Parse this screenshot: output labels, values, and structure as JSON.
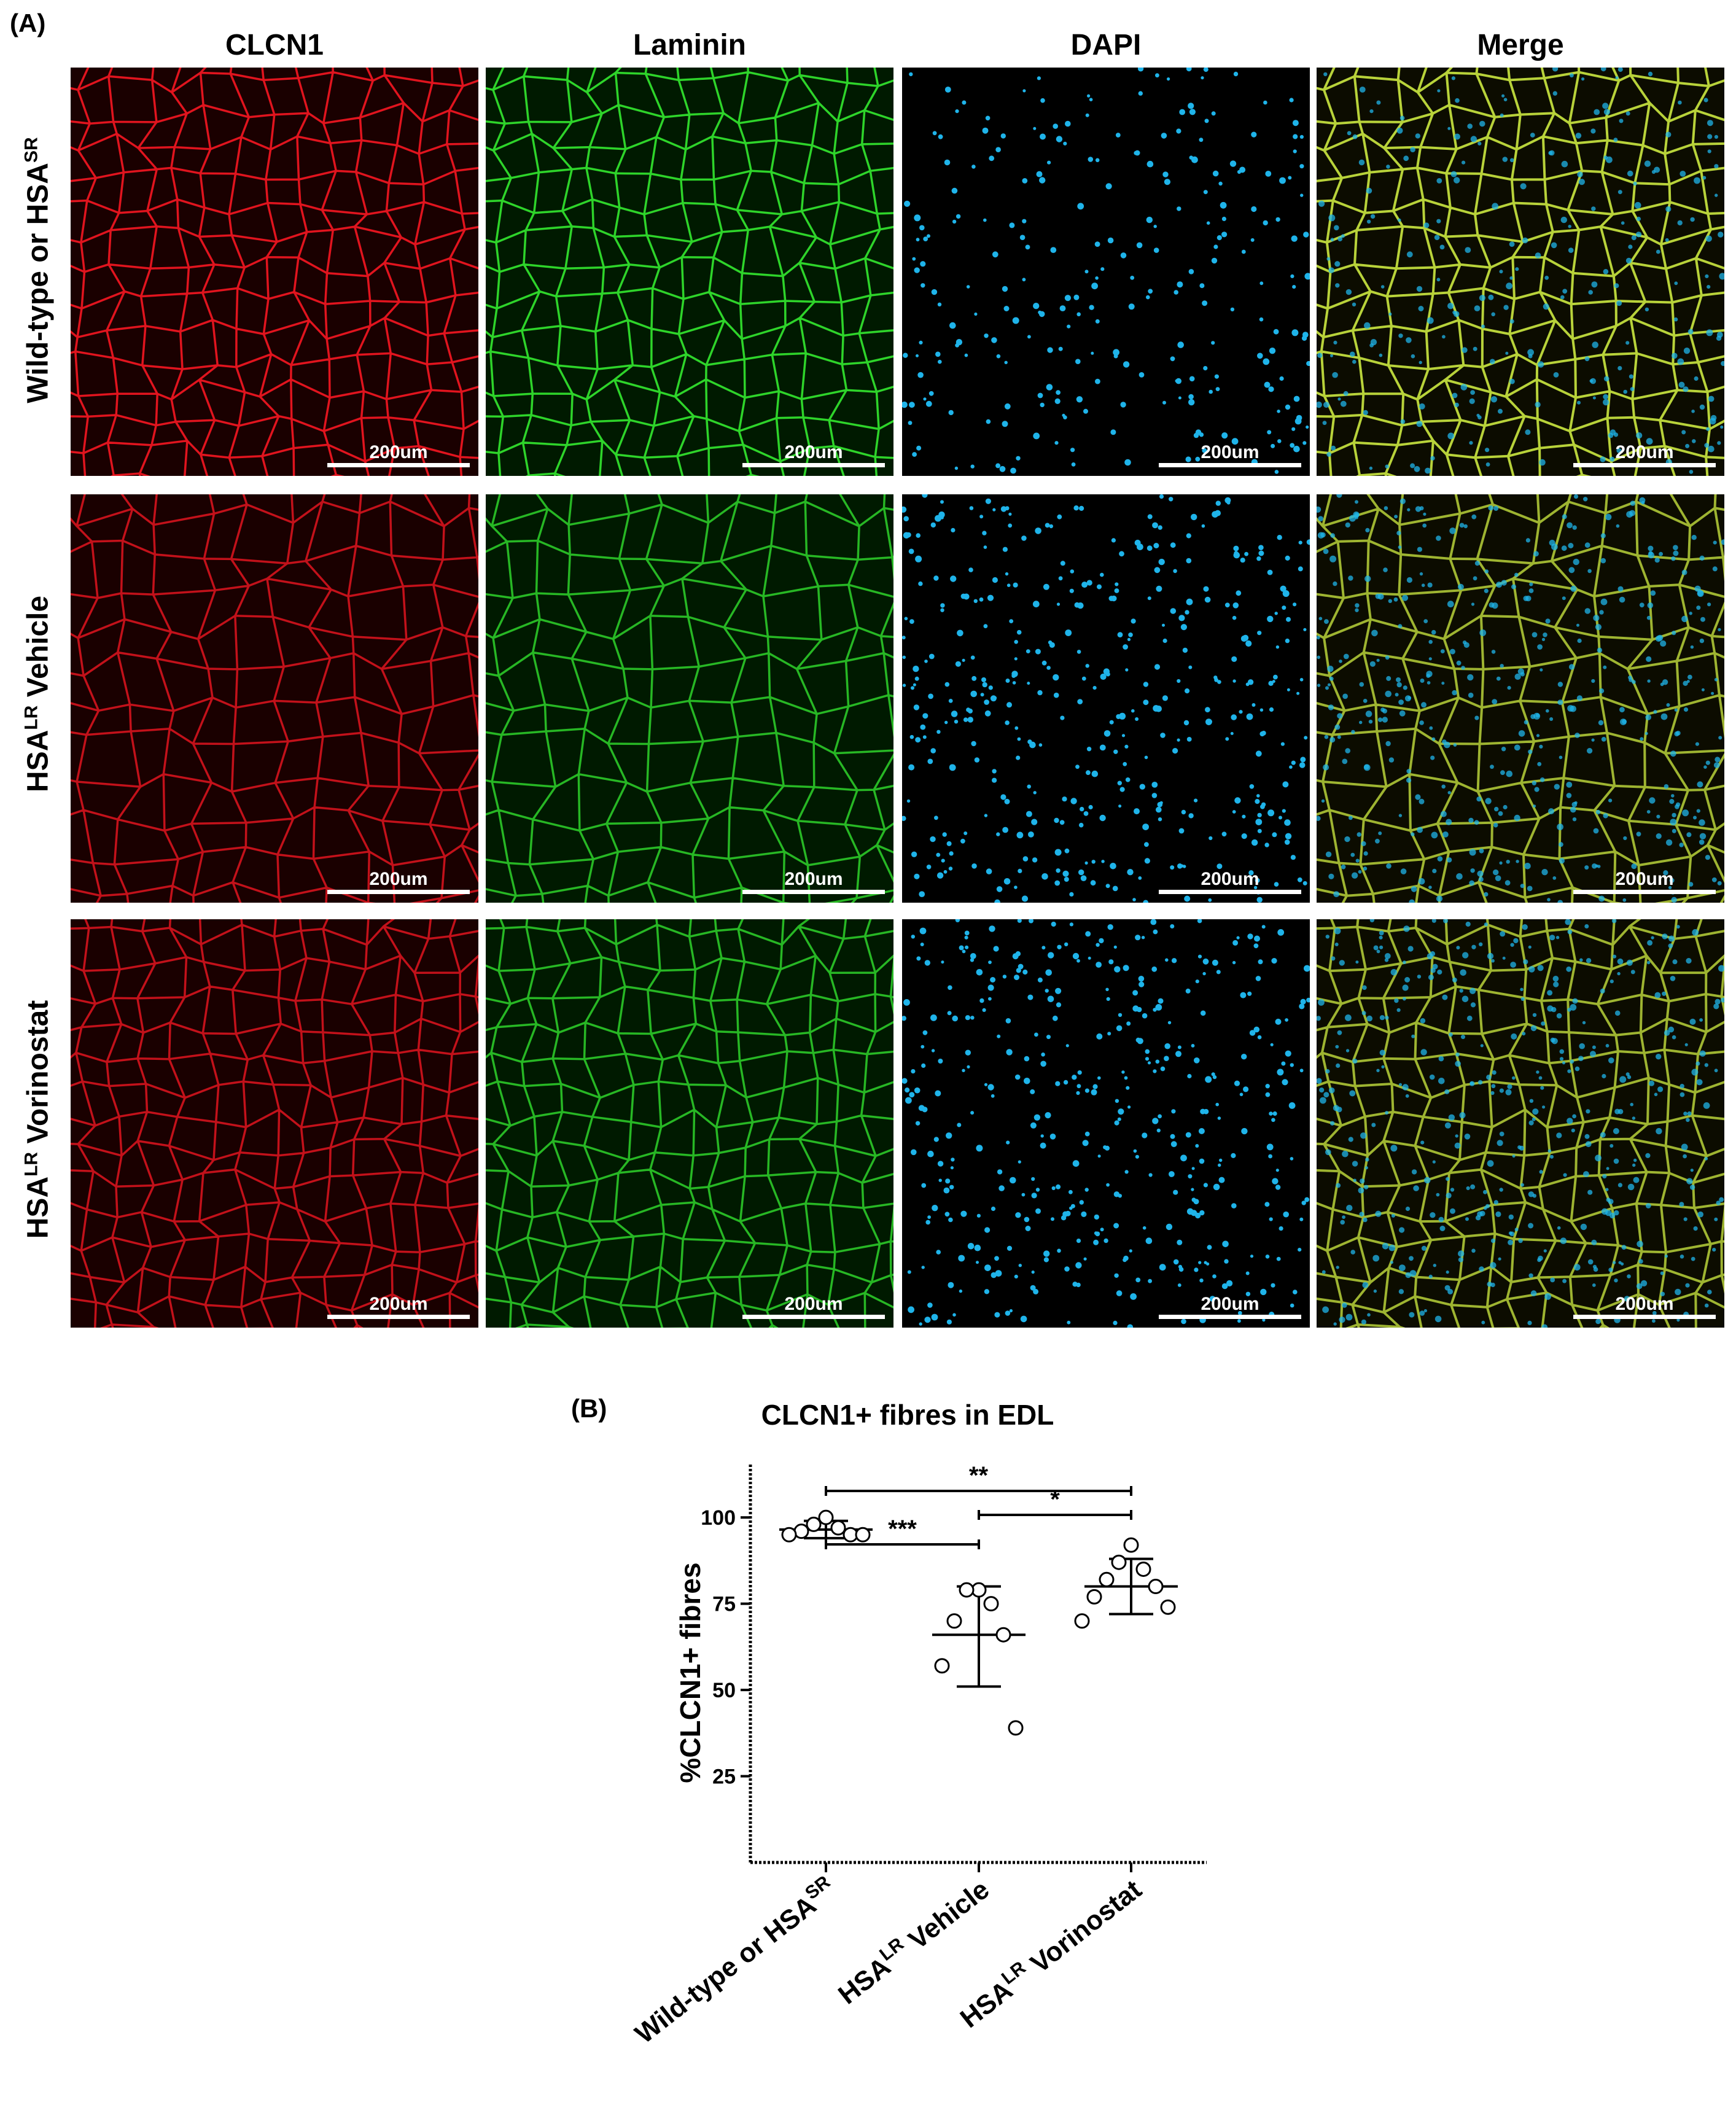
{
  "figure": {
    "panel_a_label": "(A)",
    "panel_b_label": "(B)",
    "columns": [
      "CLCN1",
      "Laminin",
      "DAPI",
      "Merge"
    ],
    "rows": [
      {
        "base": "Wild-type or HSA",
        "sup": "SR",
        "suffix": ""
      },
      {
        "base": "HSA",
        "sup": "LR",
        "suffix": " Vehicle"
      },
      {
        "base": "HSA",
        "sup": "LR",
        "suffix": " Vorinostat"
      }
    ],
    "scale_bar_label": "200um",
    "channel_colors": {
      "CLCN1": "#e0141e",
      "Laminin": "#2ed42a",
      "DAPI": "#1fb4ea",
      "Merge": "#b8d23a"
    }
  },
  "chart_data": {
    "type": "scatter",
    "title": "CLCN1+ fibres in EDL",
    "ylabel": "%CLCN1+ fibres",
    "xlabel": "",
    "ylim": [
      0,
      100
    ],
    "yticks": [
      25,
      50,
      75,
      100
    ],
    "categories": [
      {
        "base": "Wild-type or HSA",
        "sup": "SR",
        "suffix": ""
      },
      {
        "base": "HSA",
        "sup": "LR",
        "suffix": " Vehicle"
      },
      {
        "base": "HSA",
        "sup": "LR",
        "suffix": " Vorinostat"
      }
    ],
    "groups": [
      {
        "points": [
          100,
          98,
          97,
          96,
          95,
          95,
          95
        ],
        "mean": 96.5,
        "sd_low": 94,
        "sd_high": 99
      },
      {
        "points": [
          79,
          79,
          75,
          70,
          66,
          57,
          39
        ],
        "mean": 66,
        "sd_low": 51,
        "sd_high": 80
      },
      {
        "points": [
          92,
          87,
          85,
          82,
          80,
          77,
          74,
          70
        ],
        "mean": 80,
        "sd_low": 72,
        "sd_high": 88
      }
    ],
    "significance": [
      {
        "from": 0,
        "to": 1,
        "label": "***"
      },
      {
        "from": 1,
        "to": 2,
        "label": "*"
      },
      {
        "from": 0,
        "to": 2,
        "label": "**"
      }
    ],
    "grid": false,
    "legend": "none"
  }
}
